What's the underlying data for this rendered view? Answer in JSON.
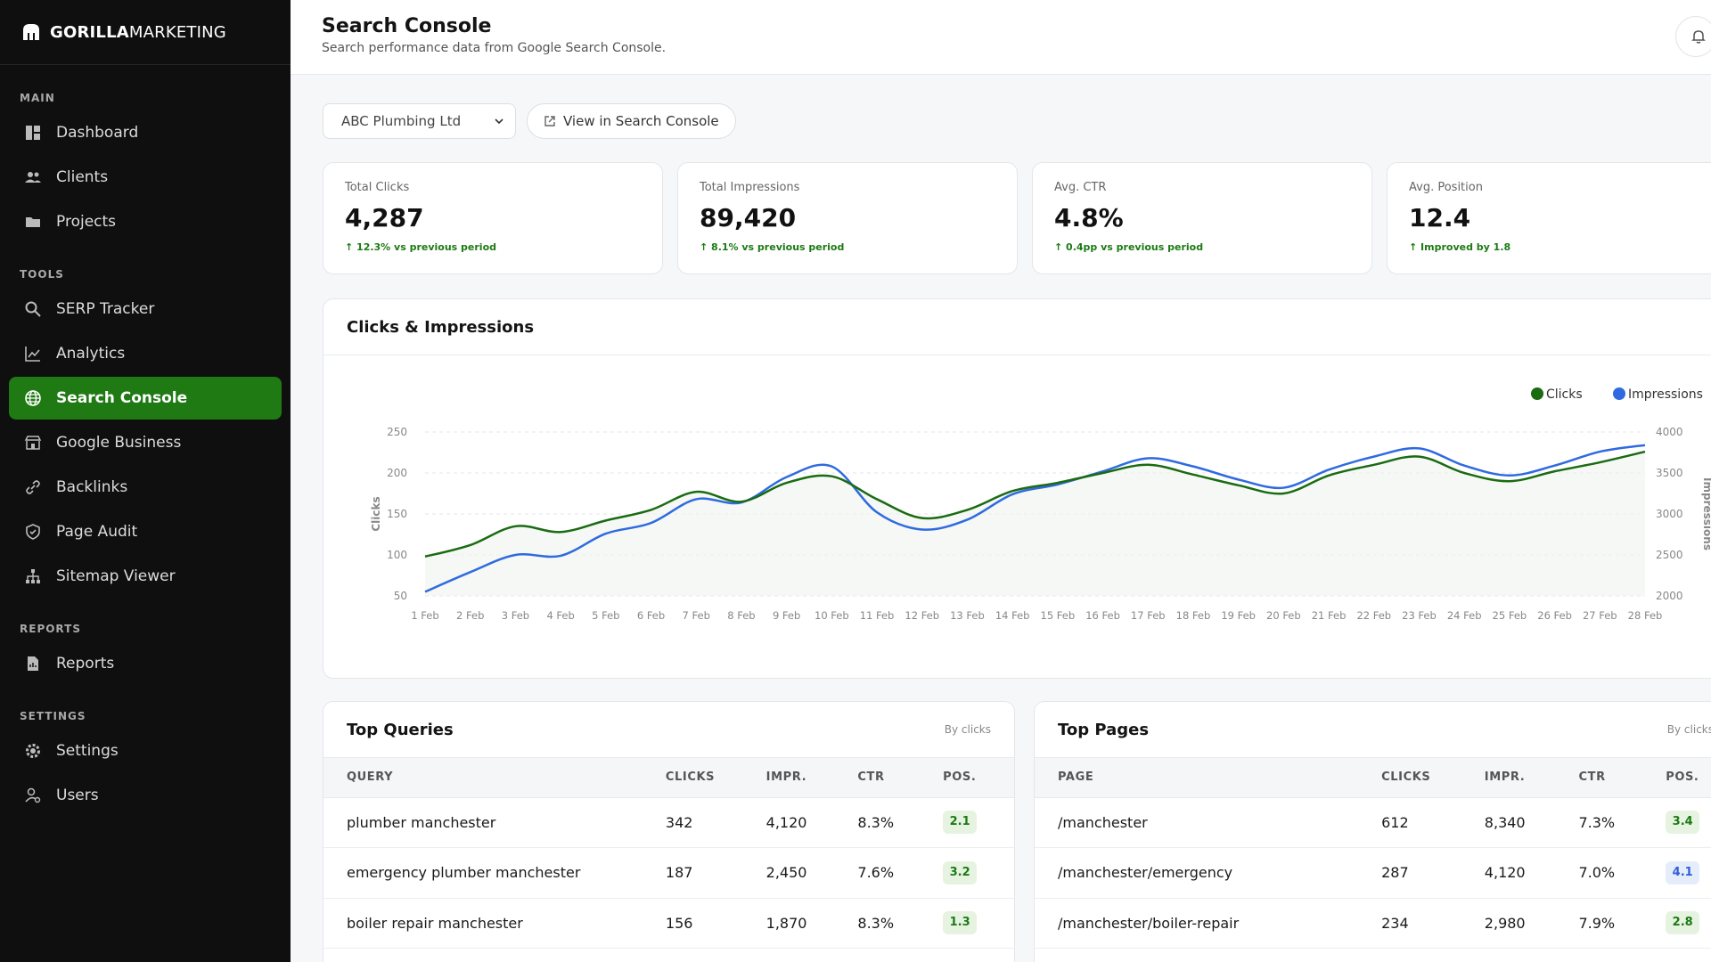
{
  "brand": {
    "bold": "GORILLA",
    "light": "MARKETING"
  },
  "sidebar": {
    "sections": [
      {
        "label": "MAIN",
        "items": [
          {
            "label": "Dashboard",
            "icon": "dashboard-icon"
          },
          {
            "label": "Clients",
            "icon": "users-icon"
          },
          {
            "label": "Projects",
            "icon": "folder-icon"
          }
        ]
      },
      {
        "label": "TOOLS",
        "items": [
          {
            "label": "SERP Tracker",
            "icon": "search-icon"
          },
          {
            "label": "Analytics",
            "icon": "line-chart-icon"
          },
          {
            "label": "Search Console",
            "icon": "globe-icon",
            "active": true
          },
          {
            "label": "Google Business",
            "icon": "store-icon"
          },
          {
            "label": "Backlinks",
            "icon": "link-icon"
          },
          {
            "label": "Page Audit",
            "icon": "shield-icon"
          },
          {
            "label": "Sitemap Viewer",
            "icon": "sitemap-icon"
          }
        ]
      },
      {
        "label": "REPORTS",
        "items": [
          {
            "label": "Reports",
            "icon": "report-icon"
          }
        ]
      },
      {
        "label": "SETTINGS",
        "items": [
          {
            "label": "Settings",
            "icon": "gear-icon"
          },
          {
            "label": "Users",
            "icon": "user-cog-icon"
          }
        ]
      }
    ]
  },
  "header": {
    "title": "Search Console",
    "subtitle": "Search performance data from Google Search Console."
  },
  "controls": {
    "client_select": "ABC Plumbing Ltd",
    "view_button": "View in Search Console"
  },
  "stats": [
    {
      "label": "Total Clicks",
      "value": "4,287",
      "delta": "↑ 12.3% vs previous period"
    },
    {
      "label": "Total Impressions",
      "value": "89,420",
      "delta": "↑ 8.1% vs previous period"
    },
    {
      "label": "Avg. CTR",
      "value": "4.8%",
      "delta": "↑ 0.4pp vs previous period"
    },
    {
      "label": "Avg. Position",
      "value": "12.4",
      "delta": "↑ Improved by 1.8"
    }
  ],
  "chart_title": "Clicks & Impressions",
  "chart_data": {
    "type": "line",
    "x": [
      "1 Feb",
      "2 Feb",
      "3 Feb",
      "4 Feb",
      "5 Feb",
      "6 Feb",
      "7 Feb",
      "8 Feb",
      "9 Feb",
      "10 Feb",
      "11 Feb",
      "12 Feb",
      "13 Feb",
      "14 Feb",
      "15 Feb",
      "16 Feb",
      "17 Feb",
      "18 Feb",
      "19 Feb",
      "20 Feb",
      "21 Feb",
      "22 Feb",
      "23 Feb",
      "24 Feb",
      "25 Feb",
      "26 Feb",
      "27 Feb",
      "28 Feb"
    ],
    "series": [
      {
        "name": "Clicks",
        "axis": "left",
        "color": "#1a6b12",
        "values": [
          98,
          112,
          135,
          128,
          142,
          155,
          177,
          165,
          188,
          196,
          168,
          145,
          155,
          178,
          188,
          200,
          210,
          198,
          185,
          175,
          197,
          210,
          220,
          200,
          190,
          202,
          213,
          226
        ]
      },
      {
        "name": "Impressions",
        "axis": "right",
        "color": "#2f6ae0",
        "values": [
          2050,
          2290,
          2500,
          2490,
          2760,
          2890,
          3180,
          3140,
          3450,
          3580,
          3020,
          2810,
          2930,
          3240,
          3360,
          3520,
          3680,
          3580,
          3420,
          3320,
          3540,
          3700,
          3800,
          3590,
          3470,
          3590,
          3760,
          3840
        ]
      }
    ],
    "ylabel": "Clicks",
    "y2label": "Impressions",
    "ylim": [
      50,
      250
    ],
    "y2lim": [
      2000,
      4000
    ],
    "yticks": [
      50,
      100,
      150,
      200,
      250
    ],
    "y2ticks": [
      2000,
      2500,
      3000,
      3500,
      4000
    ],
    "legend": "top-right",
    "grid": true
  },
  "queries": {
    "title": "Top Queries",
    "meta": "By clicks",
    "columns": [
      "QUERY",
      "CLICKS",
      "IMPR.",
      "CTR",
      "POS."
    ],
    "rows": [
      [
        "plumber manchester",
        "342",
        "4,120",
        "8.3%",
        "2.1"
      ],
      [
        "emergency plumber manchester",
        "187",
        "2,450",
        "7.6%",
        "3.2"
      ],
      [
        "boiler repair manchester",
        "156",
        "1,870",
        "8.3%",
        "1.3"
      ]
    ]
  },
  "pages": {
    "title": "Top Pages",
    "meta": "By clicks",
    "columns": [
      "PAGE",
      "CLICKS",
      "IMPR.",
      "CTR",
      "POS."
    ],
    "rows": [
      [
        "/manchester",
        "612",
        "8,340",
        "7.3%",
        "3.4"
      ],
      [
        "/manchester/emergency",
        "287",
        "4,120",
        "7.0%",
        "4.1"
      ],
      [
        "/manchester/boiler-repair",
        "234",
        "2,980",
        "7.9%",
        "2.8"
      ]
    ]
  },
  "colors": {
    "accent": "#1f7a14",
    "sidebar": "#0f0f0f",
    "clicks": "#1a6b12",
    "impressions": "#2f6ae0"
  }
}
